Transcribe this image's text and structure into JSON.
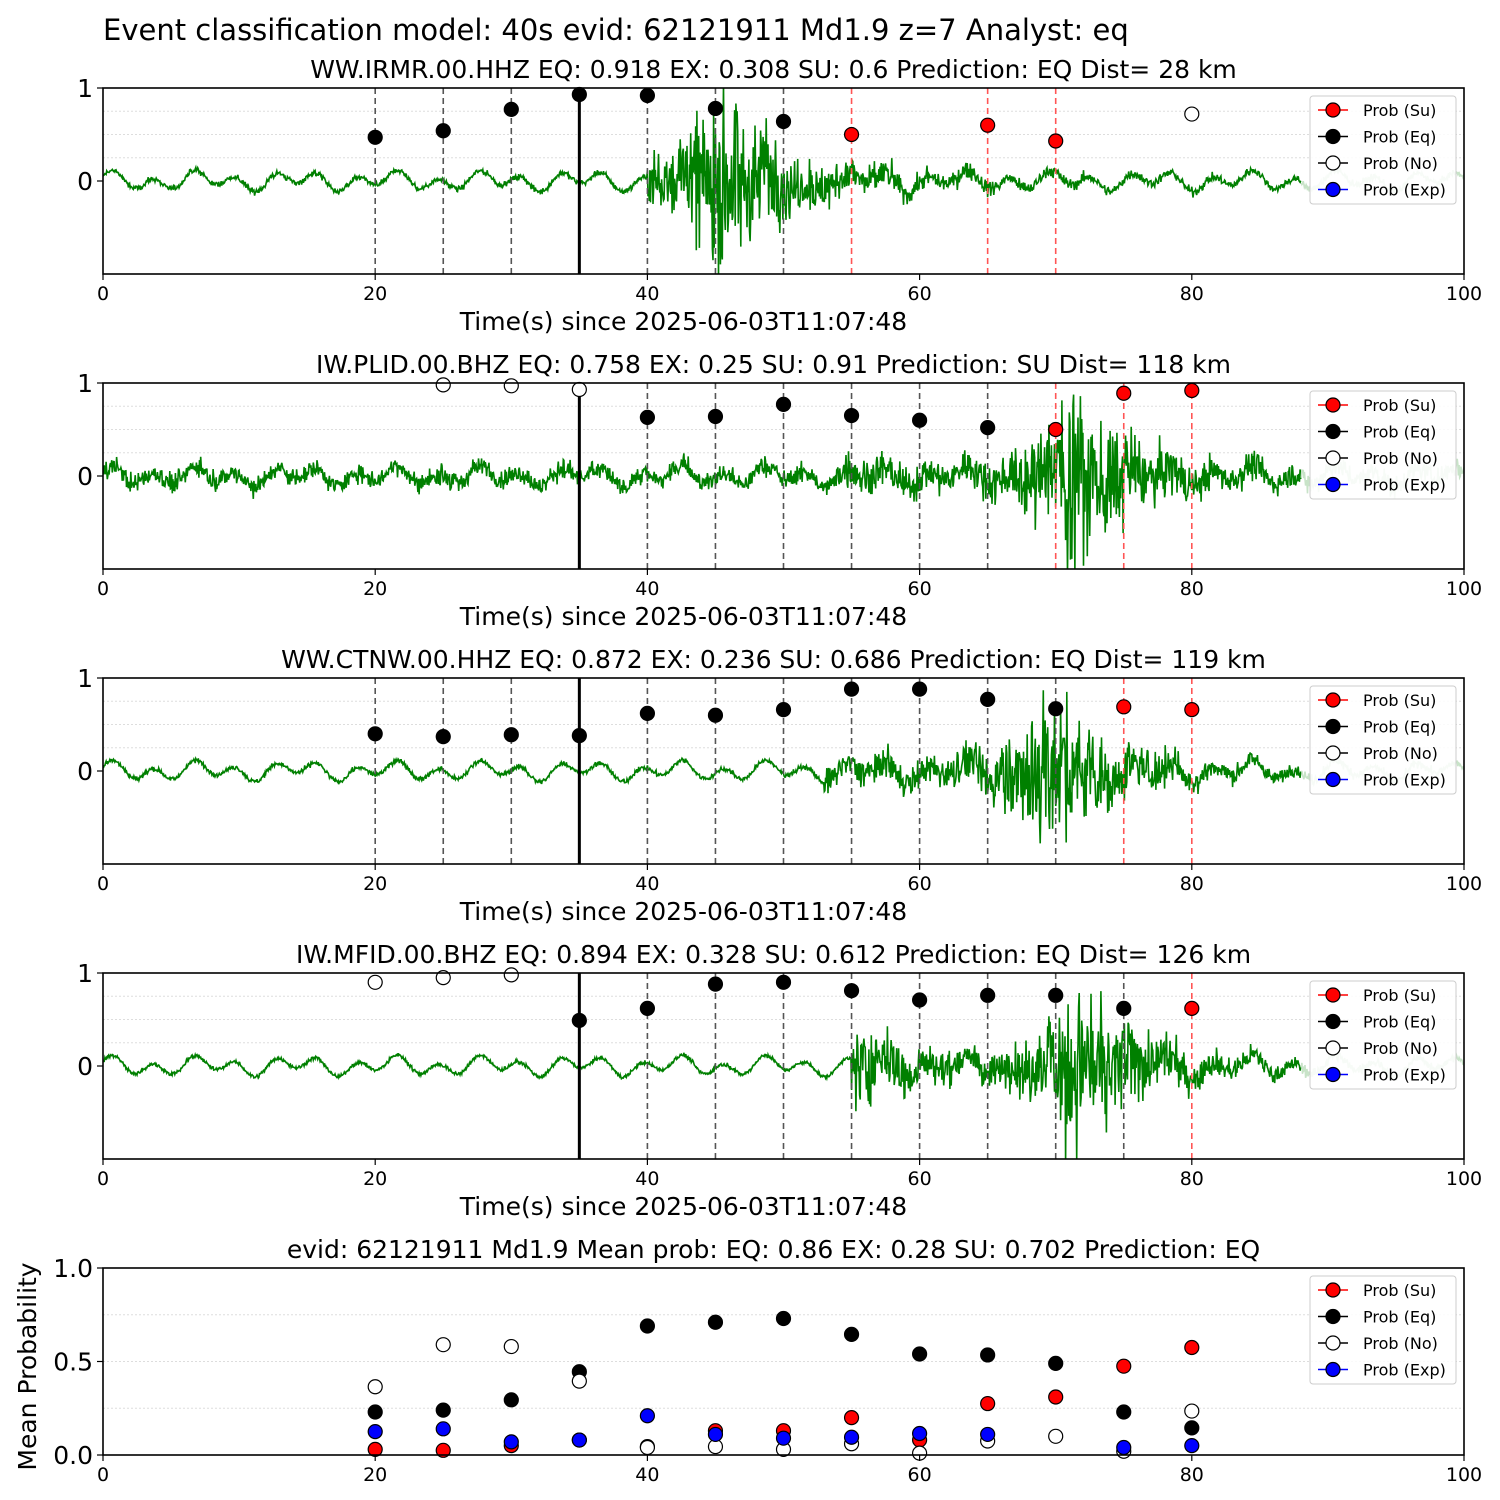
{
  "suptitle": "Event classification model: 40s evid: 62121911 Md1.9 z=7 Analyst: eq",
  "legend": [
    "Prob (Su)",
    "Prob (Eq)",
    "Prob (No)",
    "Prob (Exp)"
  ],
  "colors": {
    "su": "#ff0000",
    "eq": "#000000",
    "no": "#ffffff",
    "exp": "#0000ff",
    "waveform": "#008000",
    "waveform_faded": "#c8e3c8",
    "window_eq": "#555555",
    "window_su": "#ff5555"
  },
  "chart_data": [
    {
      "type": "line",
      "title": "WW.IRMR.00.HHZ   EQ: 0.918  EX: 0.308  SU: 0.6   Prediction: EQ    Dist= 28 km",
      "xlabel": "Time(s) since 2025-06-03T11:07:48",
      "ylabel": "",
      "xlim": [
        0,
        100
      ],
      "ylim": [
        -1,
        1
      ],
      "xticks": [
        "0",
        "20",
        "40",
        "60",
        "80",
        "100"
      ],
      "yticks": [
        "0",
        "1"
      ],
      "origin_line": 35,
      "eq_windows": [
        20,
        25,
        30,
        40,
        45,
        50
      ],
      "su_windows": [
        55,
        65,
        70
      ],
      "waveform": {
        "onset": 40,
        "peak": 45,
        "secondary": null,
        "noise": 0.06,
        "amp": 0.95
      },
      "series": [
        {
          "name": "Prob (Su)",
          "points": [
            [
              55,
              0.5
            ],
            [
              65,
              0.6
            ],
            [
              70,
              0.43
            ]
          ]
        },
        {
          "name": "Prob (Eq)",
          "points": [
            [
              20,
              0.47
            ],
            [
              25,
              0.54
            ],
            [
              30,
              0.77
            ],
            [
              35,
              0.93
            ],
            [
              40,
              0.92
            ],
            [
              45,
              0.78
            ],
            [
              50,
              0.64
            ]
          ]
        },
        {
          "name": "Prob (No)",
          "points": [
            [
              80,
              0.72
            ]
          ]
        },
        {
          "name": "Prob (Exp)",
          "points": []
        }
      ]
    },
    {
      "type": "line",
      "title": "IW.PLID.00.BHZ   EQ: 0.758  EX: 0.25  SU: 0.91   Prediction: SU    Dist= 118 km",
      "xlabel": "Time(s) since 2025-06-03T11:07:48",
      "ylabel": "",
      "xlim": [
        0,
        100
      ],
      "ylim": [
        -1,
        1
      ],
      "xticks": [
        "0",
        "20",
        "40",
        "60",
        "80",
        "100"
      ],
      "yticks": [
        "0",
        "1"
      ],
      "origin_line": 35,
      "eq_windows": [
        40,
        45,
        50,
        55,
        60,
        65
      ],
      "su_windows": [
        70,
        75,
        80
      ],
      "waveform": {
        "onset": 54,
        "peak": 71,
        "secondary": null,
        "noise": 0.2,
        "amp": 0.95
      },
      "series": [
        {
          "name": "Prob (Su)",
          "points": [
            [
              70,
              0.5
            ],
            [
              75,
              0.89
            ],
            [
              80,
              0.92
            ]
          ]
        },
        {
          "name": "Prob (Eq)",
          "points": [
            [
              40,
              0.63
            ],
            [
              45,
              0.64
            ],
            [
              50,
              0.77
            ],
            [
              55,
              0.65
            ],
            [
              60,
              0.6
            ],
            [
              65,
              0.52
            ]
          ]
        },
        {
          "name": "Prob (No)",
          "points": [
            [
              25,
              0.98
            ],
            [
              30,
              0.97
            ],
            [
              35,
              0.93
            ]
          ]
        },
        {
          "name": "Prob (Exp)",
          "points": []
        }
      ]
    },
    {
      "type": "line",
      "title": "WW.CTNW.00.HHZ   EQ: 0.872  EX: 0.236  SU: 0.686   Prediction: EQ    Dist= 119 km",
      "xlabel": "Time(s) since 2025-06-03T11:07:48",
      "ylabel": "",
      "xlim": [
        0,
        100
      ],
      "ylim": [
        -1,
        1
      ],
      "xticks": [
        "0",
        "20",
        "40",
        "60",
        "80",
        "100"
      ],
      "yticks": [
        "0",
        "1"
      ],
      "origin_line": 35,
      "eq_windows": [
        20,
        25,
        30,
        40,
        45,
        50,
        55,
        60,
        65,
        70
      ],
      "su_windows": [
        75,
        80
      ],
      "waveform": {
        "onset": 53,
        "peak": 69,
        "secondary": null,
        "noise": 0.05,
        "amp": 0.95
      },
      "series": [
        {
          "name": "Prob (Su)",
          "points": [
            [
              75,
              0.69
            ],
            [
              80,
              0.66
            ]
          ]
        },
        {
          "name": "Prob (Eq)",
          "points": [
            [
              20,
              0.4
            ],
            [
              25,
              0.37
            ],
            [
              30,
              0.39
            ],
            [
              35,
              0.38
            ],
            [
              40,
              0.62
            ],
            [
              45,
              0.6
            ],
            [
              50,
              0.66
            ],
            [
              55,
              0.88
            ],
            [
              60,
              0.88
            ],
            [
              65,
              0.77
            ],
            [
              70,
              0.67
            ]
          ]
        },
        {
          "name": "Prob (No)",
          "points": []
        },
        {
          "name": "Prob (Exp)",
          "points": []
        }
      ]
    },
    {
      "type": "line",
      "title": "IW.MFID.00.BHZ   EQ: 0.894  EX: 0.328  SU: 0.612   Prediction: EQ    Dist= 126 km",
      "xlabel": "Time(s) since 2025-06-03T11:07:48",
      "ylabel": "",
      "xlim": [
        0,
        100
      ],
      "ylim": [
        -1,
        1
      ],
      "xticks": [
        "0",
        "20",
        "40",
        "60",
        "80",
        "100"
      ],
      "yticks": [
        "0",
        "1"
      ],
      "origin_line": 35,
      "eq_windows": [
        40,
        45,
        50,
        55,
        60,
        65,
        70,
        75
      ],
      "su_windows": [
        80
      ],
      "waveform": {
        "onset": 55,
        "peak": 71,
        "secondary": 55,
        "noise": 0.04,
        "amp": 0.95
      },
      "series": [
        {
          "name": "Prob (Su)",
          "points": [
            [
              80,
              0.62
            ]
          ]
        },
        {
          "name": "Prob (Eq)",
          "points": [
            [
              35,
              0.49
            ],
            [
              40,
              0.62
            ],
            [
              45,
              0.88
            ],
            [
              50,
              0.9
            ],
            [
              55,
              0.81
            ],
            [
              60,
              0.71
            ],
            [
              65,
              0.76
            ],
            [
              70,
              0.76
            ],
            [
              75,
              0.62
            ]
          ]
        },
        {
          "name": "Prob (No)",
          "points": [
            [
              20,
              0.9
            ],
            [
              25,
              0.95
            ],
            [
              30,
              0.98
            ]
          ]
        },
        {
          "name": "Prob (Exp)",
          "points": []
        }
      ]
    },
    {
      "type": "scatter",
      "title": "evid: 62121911  Md1.9   Mean prob:   EQ: 0.86  EX: 0.28  SU: 0.702   Prediction: EQ",
      "xlabel": "",
      "ylabel": "Mean Probability",
      "xlim": [
        0,
        100
      ],
      "ylim": [
        0,
        1
      ],
      "xticks": [
        "0",
        "20",
        "40",
        "60",
        "80",
        "100"
      ],
      "yticks": [
        "0.0",
        "0.5",
        "1.0"
      ],
      "series": [
        {
          "name": "Prob (Su)",
          "points": [
            [
              20,
              0.03
            ],
            [
              25,
              0.025
            ],
            [
              30,
              0.05
            ],
            [
              35,
              0.08
            ],
            [
              40,
              0.045
            ],
            [
              45,
              0.13
            ],
            [
              50,
              0.13
            ],
            [
              55,
              0.2
            ],
            [
              60,
              0.08
            ],
            [
              65,
              0.275
            ],
            [
              70,
              0.31
            ],
            [
              75,
              0.475
            ],
            [
              80,
              0.575
            ]
          ]
        },
        {
          "name": "Prob (Eq)",
          "points": [
            [
              20,
              0.23
            ],
            [
              25,
              0.24
            ],
            [
              30,
              0.295
            ],
            [
              35,
              0.445
            ],
            [
              40,
              0.69
            ],
            [
              45,
              0.71
            ],
            [
              50,
              0.73
            ],
            [
              55,
              0.645
            ],
            [
              60,
              0.54
            ],
            [
              65,
              0.535
            ],
            [
              70,
              0.49
            ],
            [
              75,
              0.23
            ],
            [
              80,
              0.145
            ]
          ]
        },
        {
          "name": "Prob (No)",
          "points": [
            [
              20,
              0.365
            ],
            [
              25,
              0.59
            ],
            [
              30,
              0.58
            ],
            [
              35,
              0.395
            ],
            [
              40,
              0.04
            ],
            [
              45,
              0.045
            ],
            [
              50,
              0.03
            ],
            [
              55,
              0.06
            ],
            [
              60,
              0.01
            ],
            [
              65,
              0.075
            ],
            [
              70,
              0.1
            ],
            [
              75,
              0.02
            ],
            [
              80,
              0.235
            ]
          ]
        },
        {
          "name": "Prob (Exp)",
          "points": [
            [
              20,
              0.125
            ],
            [
              25,
              0.14
            ],
            [
              30,
              0.07
            ],
            [
              35,
              0.08
            ],
            [
              40,
              0.21
            ],
            [
              45,
              0.11
            ],
            [
              50,
              0.09
            ],
            [
              55,
              0.095
            ],
            [
              60,
              0.115
            ],
            [
              65,
              0.11
            ],
            [
              75,
              0.04
            ],
            [
              80,
              0.05
            ]
          ]
        }
      ]
    }
  ]
}
